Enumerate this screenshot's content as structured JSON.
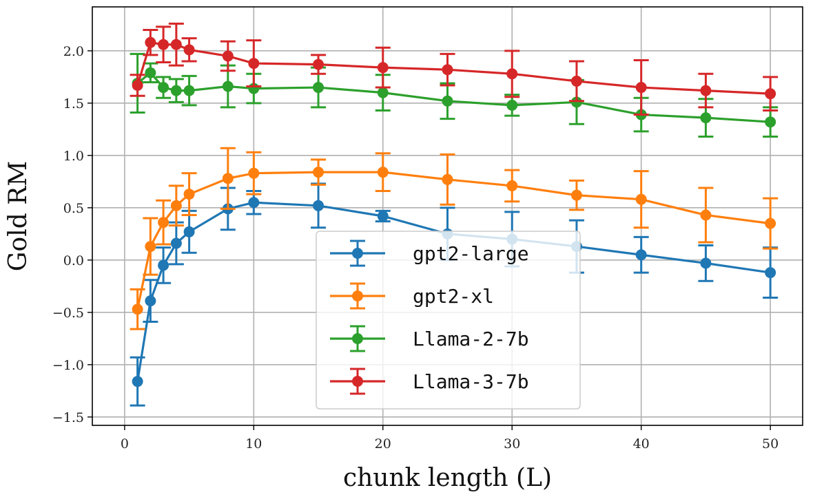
{
  "chart_data": {
    "type": "line",
    "xlabel": "chunk length (L)",
    "ylabel": "Gold RM",
    "xlim": [
      -2.5,
      52.5
    ],
    "ylim": [
      -1.58,
      2.42
    ],
    "xticks": [
      0,
      10,
      20,
      30,
      40,
      50
    ],
    "xtick_labels": [
      "0",
      "10",
      "20",
      "30",
      "40",
      "50"
    ],
    "yticks": [
      -1.5,
      -1.0,
      -0.5,
      0.0,
      0.5,
      1.0,
      1.5,
      2.0
    ],
    "ytick_labels": [
      "−1.5",
      "−1.0",
      "−0.5",
      "0.0",
      "0.5",
      "1.0",
      "1.5",
      "2.0"
    ],
    "grid": true,
    "legend_position": "lower-center",
    "x": [
      1,
      2,
      3,
      4,
      5,
      8,
      10,
      15,
      20,
      25,
      30,
      35,
      40,
      45,
      50
    ],
    "series": [
      {
        "name": "gpt2-large",
        "color": "#1f77b4",
        "values": [
          -1.16,
          -0.39,
          -0.05,
          0.16,
          0.27,
          0.49,
          0.55,
          0.52,
          0.42,
          0.25,
          0.2,
          0.13,
          0.05,
          -0.03,
          -0.12
        ],
        "errors": [
          0.23,
          0.2,
          0.17,
          0.2,
          0.2,
          0.2,
          0.11,
          0.21,
          0.05,
          0.25,
          0.26,
          0.25,
          0.17,
          0.17,
          0.24
        ]
      },
      {
        "name": "gpt2-xl",
        "color": "#ff7f0e",
        "values": [
          -0.47,
          0.13,
          0.36,
          0.52,
          0.63,
          0.78,
          0.83,
          0.84,
          0.84,
          0.77,
          0.71,
          0.62,
          0.58,
          0.43,
          0.35
        ],
        "errors": [
          0.19,
          0.27,
          0.21,
          0.19,
          0.2,
          0.29,
          0.2,
          0.12,
          0.18,
          0.24,
          0.15,
          0.14,
          0.27,
          0.26,
          0.24
        ]
      },
      {
        "name": "Llama-2-7b",
        "color": "#2ca02c",
        "values": [
          1.69,
          1.79,
          1.65,
          1.62,
          1.62,
          1.66,
          1.64,
          1.65,
          1.6,
          1.52,
          1.48,
          1.51,
          1.39,
          1.36,
          1.32
        ],
        "errors": [
          0.28,
          0.09,
          0.1,
          0.11,
          0.14,
          0.2,
          0.14,
          0.19,
          0.17,
          0.17,
          0.1,
          0.21,
          0.16,
          0.18,
          0.14
        ]
      },
      {
        "name": "Llama-3-7b",
        "color": "#d62728",
        "values": [
          1.67,
          2.08,
          2.06,
          2.06,
          2.01,
          1.95,
          1.88,
          1.87,
          1.84,
          1.82,
          1.78,
          1.71,
          1.65,
          1.62,
          1.59
        ],
        "errors": [
          0.1,
          0.12,
          0.17,
          0.2,
          0.11,
          0.14,
          0.22,
          0.09,
          0.19,
          0.15,
          0.22,
          0.19,
          0.26,
          0.16,
          0.16
        ]
      }
    ]
  }
}
